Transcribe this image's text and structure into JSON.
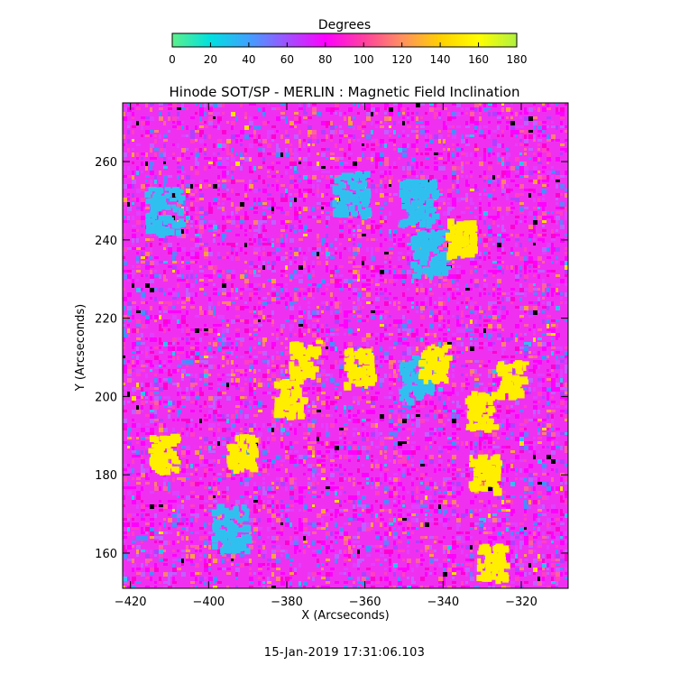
{
  "colors": {
    "colorbar_stops": [
      "#5cf08c",
      "#00e0e0",
      "#40a0ff",
      "#a050ff",
      "#ff00ff",
      "#ff40a0",
      "#ff9060",
      "#ffd000",
      "#ffff00",
      "#b0f040"
    ],
    "background": "#ffffff",
    "dominant_field": "#f030f0",
    "low_inclination_patches": "#30c0f0",
    "high_inclination_patches": "#ffee00"
  },
  "chart_data": {
    "type": "heatmap",
    "title": "Hinode SOT/SP - MERLIN : Magnetic Field Inclination",
    "xlabel": "X (Arcseconds)",
    "ylabel": "Y (Arcseconds)",
    "xlim": [
      -422,
      -308
    ],
    "ylim": [
      151,
      275
    ],
    "x_ticks": [
      -420,
      -400,
      -380,
      -360,
      -340,
      -320
    ],
    "y_ticks": [
      160,
      180,
      200,
      220,
      240,
      260
    ],
    "colorbar": {
      "label": "Degrees",
      "range": [
        0,
        180
      ],
      "ticks": [
        0,
        20,
        40,
        60,
        80,
        100,
        120,
        140,
        160,
        180
      ]
    },
    "typical_value_deg": 95,
    "low_inclination_regions_deg_approx_40": [
      {
        "x": -395,
        "y": 167
      },
      {
        "x": -412,
        "y": 248
      },
      {
        "x": -347,
        "y": 250
      },
      {
        "x": -344,
        "y": 237
      },
      {
        "x": -364,
        "y": 252
      },
      {
        "x": -347,
        "y": 205
      }
    ],
    "high_inclination_regions_deg_approx_150": [
      {
        "x": -376,
        "y": 210
      },
      {
        "x": -380,
        "y": 200
      },
      {
        "x": -331,
        "y": 197
      },
      {
        "x": -412,
        "y": 186
      },
      {
        "x": -392,
        "y": 186
      },
      {
        "x": -323,
        "y": 205
      },
      {
        "x": -343,
        "y": 209
      },
      {
        "x": -362,
        "y": 208
      },
      {
        "x": -336,
        "y": 241
      },
      {
        "x": -328,
        "y": 158
      },
      {
        "x": -330,
        "y": 181
      }
    ]
  },
  "footer": {
    "timestamp": "15-Jan-2019 17:31:06.103"
  }
}
